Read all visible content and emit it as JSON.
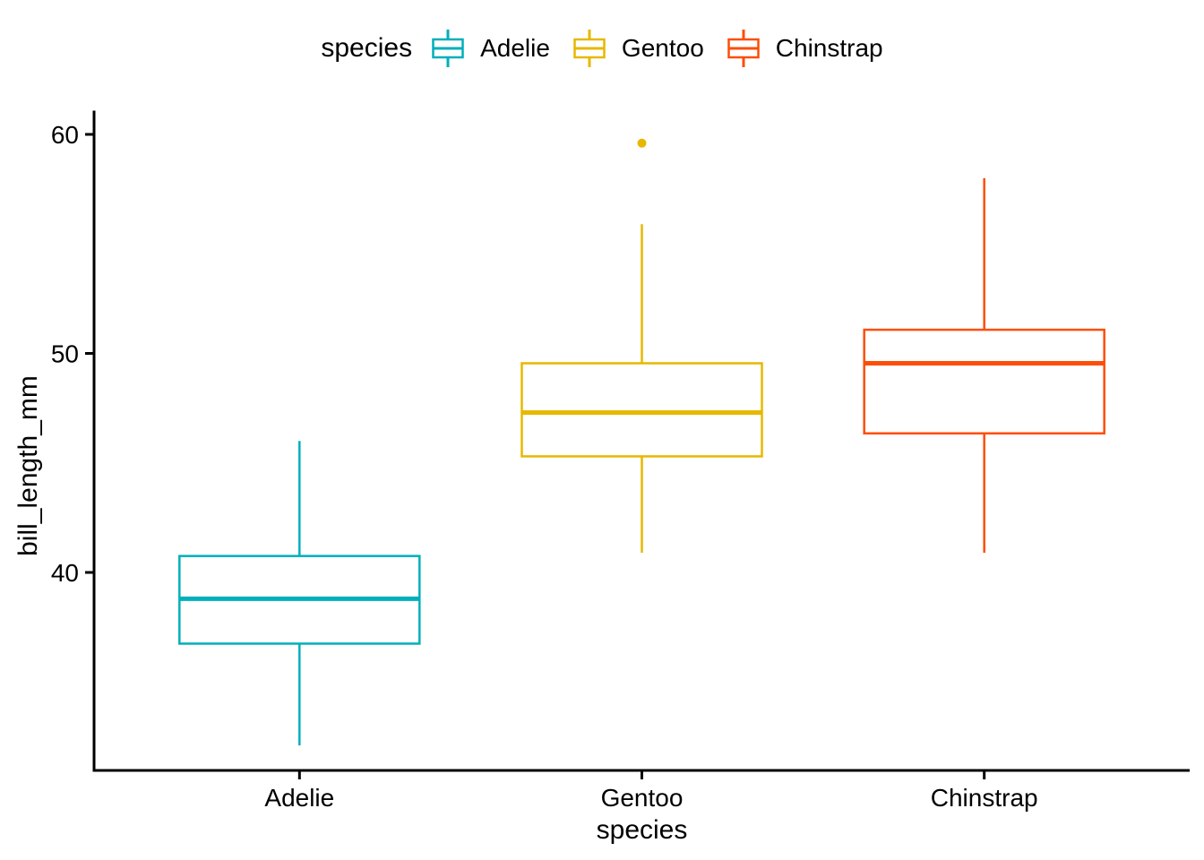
{
  "chart_data": {
    "type": "boxplot",
    "title": "",
    "legend_title": "species",
    "legend_position": "top",
    "xlabel": "species",
    "ylabel": "bill_length_mm",
    "categories": [
      "Adelie",
      "Gentoo",
      "Chinstrap"
    ],
    "y_ticks": [
      40,
      50,
      60
    ],
    "ylim": [
      31.0,
      61.0
    ],
    "grid": false,
    "background": "#FFFFFF",
    "axis_color": "#000000",
    "series": [
      {
        "name": "Adelie",
        "color": "#00AFBB",
        "whisker_low": 32.1,
        "q1": 36.75,
        "median": 38.8,
        "q3": 40.75,
        "whisker_high": 46.0,
        "outliers": []
      },
      {
        "name": "Gentoo",
        "color": "#E7B800",
        "whisker_low": 40.9,
        "q1": 45.3,
        "median": 47.3,
        "q3": 49.55,
        "whisker_high": 55.9,
        "outliers": [
          59.6
        ]
      },
      {
        "name": "Chinstrap",
        "color": "#FC4E07",
        "whisker_low": 40.9,
        "q1": 46.35,
        "median": 49.55,
        "q3": 51.08,
        "whisker_high": 58.0,
        "outliers": []
      }
    ]
  }
}
